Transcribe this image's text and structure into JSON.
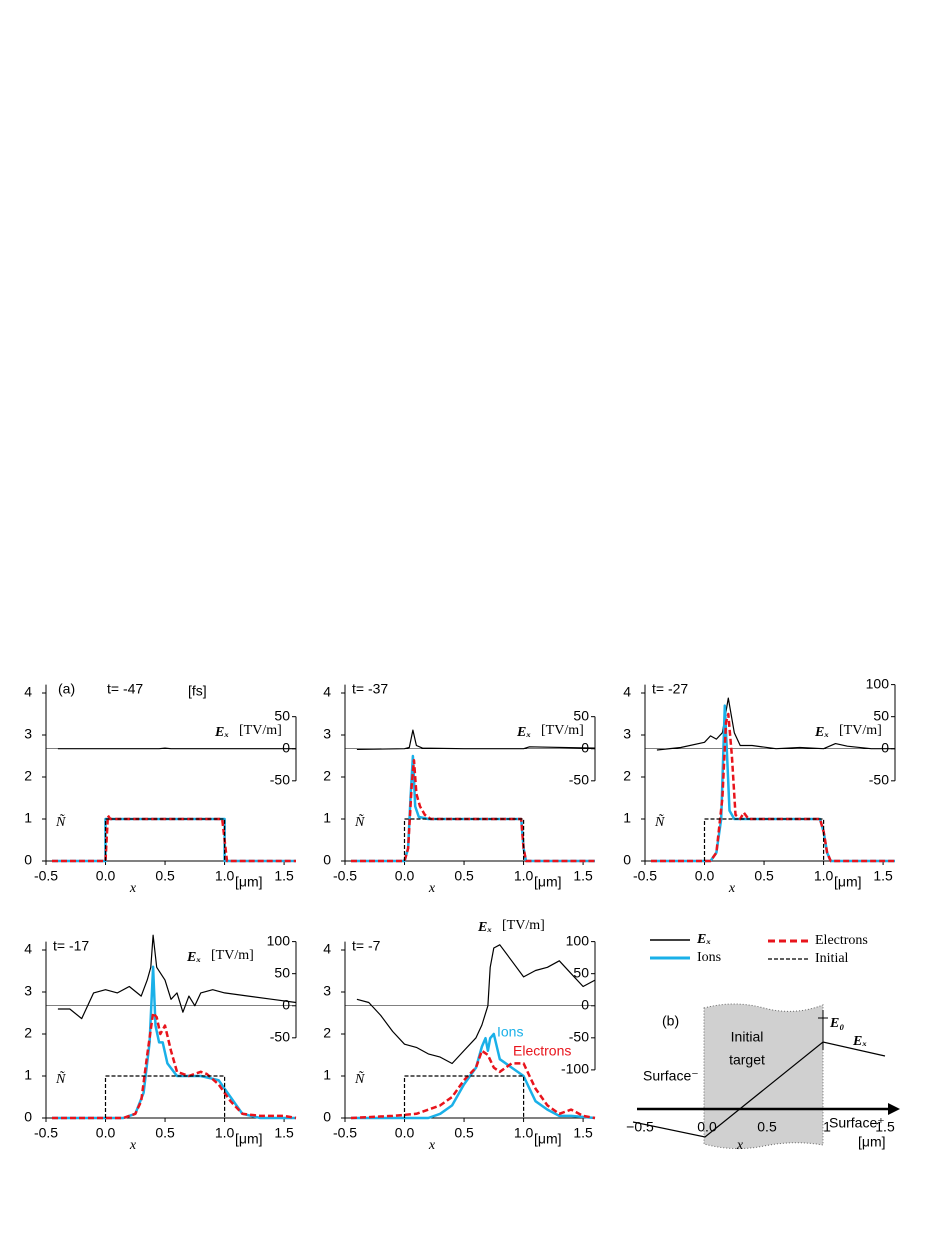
{
  "chart_data": [
    {
      "type": "line",
      "panel_label": "(a)",
      "title": "t= -47",
      "title_unit": "[fs]",
      "xlabel": "x",
      "xunit": "[μm]",
      "ylabel": "Ñ",
      "y2label": "Eₓ",
      "y2unit": "[TV/m]",
      "xlim": [
        -0.5,
        1.6
      ],
      "xticks": [
        -0.5,
        {
          "value": 0,
          "label": "0.0"
        },
        0.5,
        {
          "value": 1,
          "label": "1.0"
        },
        1.5
      ],
      "ylim": [
        0,
        4.2
      ],
      "yticks": [
        0,
        1,
        2,
        3,
        4
      ],
      "y2lim": [
        -175,
        100
      ],
      "y2ticks": [
        -50,
        0,
        50
      ],
      "series": [
        {
          "name": "Eₓ",
          "color": "#000000",
          "axis": "y2",
          "weight": "light",
          "x": [
            -0.4,
            0.45,
            0.5,
            0.55,
            1.6
          ],
          "values": [
            0,
            0,
            1,
            0,
            0
          ]
        },
        {
          "name": "Ions",
          "color": "#1ab0e8",
          "weight": "bold",
          "x": [
            -0.45,
            0,
            0,
            0.02,
            1,
            1,
            1.6
          ],
          "values": [
            0,
            0,
            1,
            1,
            1,
            0,
            0
          ]
        },
        {
          "name": "Electrons",
          "color": "#e8141c",
          "dash": true,
          "weight": "bold",
          "x": [
            -0.45,
            0,
            0.02,
            0.04,
            0.1,
            0.98,
            1,
            1.02,
            1.6
          ],
          "values": [
            0,
            0,
            1.08,
            1,
            1,
            1,
            0.5,
            0,
            0
          ]
        },
        {
          "name": "Initial",
          "color": "#000000",
          "dash": true,
          "weight": "light",
          "x": [
            0,
            0,
            1,
            1
          ],
          "values": [
            0,
            1,
            1,
            0
          ]
        }
      ]
    },
    {
      "type": "line",
      "title": "t= -37",
      "xlabel": "x",
      "xunit": "[μm]",
      "ylabel": "Ñ",
      "y2label": "Eₓ",
      "y2unit": "[TV/m]",
      "xlim": [
        -0.5,
        1.6
      ],
      "xticks": [
        -0.5,
        {
          "value": 0,
          "label": "0.0"
        },
        0.5,
        {
          "value": 1,
          "label": "1.0"
        },
        1.5
      ],
      "ylim": [
        0,
        4.2
      ],
      "yticks": [
        0,
        1,
        2,
        3,
        4
      ],
      "y2lim": [
        -175,
        100
      ],
      "y2ticks": [
        -50,
        0,
        50
      ],
      "series": [
        {
          "name": "Eₓ",
          "color": "#000000",
          "axis": "y2",
          "weight": "light",
          "x": [
            -0.4,
            0,
            0.04,
            0.07,
            0.1,
            0.15,
            0.5,
            1,
            1.05,
            1.6
          ],
          "values": [
            -1,
            0,
            2,
            29,
            5,
            1,
            0,
            0,
            3,
            1
          ]
        },
        {
          "name": "Ions",
          "color": "#1ab0e8",
          "weight": "bold",
          "x": [
            -0.45,
            0,
            0.03,
            0.05,
            0.07,
            0.09,
            0.12,
            0.2,
            0.98,
            1,
            1.02,
            1.6
          ],
          "values": [
            0,
            0,
            0.3,
            1.5,
            2.5,
            1.3,
            1.05,
            1,
            1,
            0.3,
            0,
            0
          ]
        },
        {
          "name": "Electrons",
          "color": "#e8141c",
          "dash": true,
          "weight": "bold",
          "x": [
            -0.45,
            0,
            0.03,
            0.06,
            0.08,
            0.1,
            0.13,
            0.17,
            0.22,
            0.3,
            0.98,
            1,
            1.02,
            1.6
          ],
          "values": [
            0,
            0,
            0.3,
            1.8,
            2.4,
            1.6,
            1.3,
            1.1,
            1,
            1,
            1,
            0.3,
            0,
            0
          ]
        },
        {
          "name": "Initial",
          "color": "#000000",
          "dash": true,
          "weight": "light",
          "x": [
            0,
            0,
            1,
            1
          ],
          "values": [
            0,
            1,
            1,
            0
          ]
        }
      ]
    },
    {
      "type": "line",
      "title": "t= -27",
      "xlabel": "x",
      "xunit": "[μm]",
      "ylabel": "Ñ",
      "y2label": "Eₓ",
      "y2unit": "[TV/m]",
      "xlim": [
        -0.5,
        1.6
      ],
      "xticks": [
        -0.5,
        {
          "value": 0,
          "label": "0.0"
        },
        0.5,
        {
          "value": 1,
          "label": "1.0"
        },
        1.5
      ],
      "ylim": [
        0,
        4.2
      ],
      "yticks": [
        0,
        1,
        2,
        3,
        4
      ],
      "y2lim": [
        -175,
        100
      ],
      "y2ticks": [
        -50,
        0,
        50,
        100
      ],
      "series": [
        {
          "name": "Eₓ",
          "color": "#000000",
          "axis": "y2",
          "weight": "light",
          "x": [
            -0.4,
            -0.2,
            0,
            0.05,
            0.1,
            0.15,
            0.2,
            0.25,
            0.3,
            0.4,
            0.6,
            0.8,
            1,
            1.1,
            1.2,
            1.4,
            1.6
          ],
          "values": [
            -2,
            2,
            10,
            20,
            15,
            25,
            79,
            25,
            5,
            5,
            0,
            2,
            0,
            8,
            4,
            0,
            0
          ]
        },
        {
          "name": "Ions",
          "color": "#1ab0e8",
          "weight": "bold",
          "x": [
            -0.45,
            0.05,
            0.1,
            0.14,
            0.17,
            0.19,
            0.21,
            0.25,
            0.3,
            0.97,
            1,
            1.03,
            1.06,
            1.6
          ],
          "values": [
            0,
            0,
            0.2,
            1,
            3.7,
            2.5,
            1.2,
            1,
            1,
            1,
            0.7,
            0.2,
            0,
            0
          ]
        },
        {
          "name": "Electrons",
          "color": "#e8141c",
          "dash": true,
          "weight": "bold",
          "x": [
            -0.45,
            0.05,
            0.1,
            0.15,
            0.18,
            0.2,
            0.23,
            0.26,
            0.3,
            0.33,
            0.37,
            0.5,
            0.97,
            1,
            1.03,
            1.06,
            1.6
          ],
          "values": [
            0,
            0,
            0.2,
            1.5,
            3.3,
            3.5,
            2.5,
            1.1,
            1,
            1.15,
            1,
            1,
            1,
            0.7,
            0.2,
            0,
            0
          ]
        },
        {
          "name": "Initial",
          "color": "#000000",
          "dash": true,
          "weight": "light",
          "x": [
            0,
            0,
            1,
            1
          ],
          "values": [
            0,
            1,
            1,
            0
          ]
        }
      ]
    },
    {
      "type": "line",
      "title": "t= -17",
      "xlabel": "x",
      "xunit": "[μm]",
      "ylabel": "Ñ",
      "y2label": "Eₓ",
      "y2unit": "[TV/m]",
      "xlim": [
        -0.5,
        1.6
      ],
      "xticks": [
        -0.5,
        {
          "value": 0,
          "label": "0.0"
        },
        0.5,
        {
          "value": 1,
          "label": "1.0"
        },
        1.5
      ],
      "ylim": [
        0,
        4.2
      ],
      "yticks": [
        0,
        1,
        2,
        3,
        4
      ],
      "y2lim": [
        -175,
        100
      ],
      "y2ticks": [
        -50,
        0,
        50,
        100
      ],
      "series": [
        {
          "name": "Eₓ",
          "color": "#000000",
          "axis": "y2",
          "weight": "light",
          "x": [
            -0.4,
            -0.3,
            -0.2,
            -0.1,
            0,
            0.1,
            0.2,
            0.3,
            0.35,
            0.38,
            0.4,
            0.43,
            0.5,
            0.55,
            0.6,
            0.65,
            0.7,
            0.75,
            0.8,
            0.9,
            1,
            1.2,
            1.4,
            1.6
          ],
          "values": [
            -5,
            -5,
            -20,
            20,
            25,
            20,
            30,
            15,
            40,
            60,
            110,
            60,
            40,
            10,
            20,
            -10,
            15,
            0,
            20,
            25,
            20,
            15,
            10,
            5
          ]
        },
        {
          "name": "Ions",
          "color": "#1ab0e8",
          "weight": "bold",
          "x": [
            -0.45,
            0.15,
            0.25,
            0.32,
            0.37,
            0.4,
            0.42,
            0.45,
            0.48,
            0.52,
            0.6,
            0.8,
            0.95,
            1.05,
            1.15,
            1.3,
            1.6
          ],
          "values": [
            0,
            0,
            0.1,
            0.6,
            1.8,
            3.6,
            2.2,
            1.8,
            1.8,
            1.3,
            1,
            1,
            0.9,
            0.5,
            0.1,
            0,
            0
          ]
        },
        {
          "name": "Electrons",
          "color": "#e8141c",
          "dash": true,
          "weight": "bold",
          "x": [
            -0.45,
            0.15,
            0.25,
            0.3,
            0.35,
            0.4,
            0.43,
            0.46,
            0.5,
            0.55,
            0.6,
            0.7,
            0.8,
            0.85,
            0.95,
            1.05,
            1.15,
            1.3,
            1.4,
            1.5,
            1.6
          ],
          "values": [
            0,
            0,
            0.1,
            0.4,
            1.5,
            2.5,
            2.4,
            2,
            2.2,
            1.6,
            1.1,
            1,
            1.1,
            1.05,
            0.8,
            0.4,
            0.1,
            0.05,
            0.05,
            0.05,
            0
          ]
        },
        {
          "name": "Initial",
          "color": "#000000",
          "dash": true,
          "weight": "light",
          "x": [
            0,
            0,
            1,
            1
          ],
          "values": [
            0,
            1,
            1,
            0
          ]
        }
      ]
    },
    {
      "type": "line",
      "title": "t= -7",
      "xlabel": "x",
      "xunit": "[μm]",
      "ylabel": "Ñ",
      "y2label": "Eₓ",
      "y2unit": "[TV/m]",
      "xlim": [
        -0.5,
        1.6
      ],
      "xticks": [
        -0.5,
        {
          "value": 0,
          "label": "0.0"
        },
        0.5,
        {
          "value": 1,
          "label": "1.0"
        },
        1.5
      ],
      "ylim": [
        0,
        4.2
      ],
      "yticks": [
        0,
        1,
        2,
        3,
        4
      ],
      "y2lim": [
        -175,
        100
      ],
      "y2ticks": [
        -100,
        -50,
        0,
        50,
        100
      ],
      "annotations": [
        {
          "text": "Ions",
          "color": "#1ab0e8"
        },
        {
          "text": "Electrons",
          "color": "#e8141c"
        }
      ],
      "series": [
        {
          "name": "Eₓ",
          "color": "#000000",
          "axis": "y2",
          "weight": "light",
          "x": [
            -0.4,
            -0.3,
            -0.2,
            -0.1,
            0,
            0.1,
            0.2,
            0.3,
            0.4,
            0.5,
            0.6,
            0.65,
            0.7,
            0.72,
            0.75,
            0.8,
            0.9,
            1,
            1.1,
            1.2,
            1.3,
            1.4,
            1.5,
            1.6
          ],
          "values": [
            10,
            5,
            -15,
            -40,
            -60,
            -65,
            -75,
            -80,
            -90,
            -70,
            -50,
            -30,
            0,
            60,
            90,
            95,
            70,
            45,
            55,
            60,
            70,
            50,
            30,
            40
          ]
        },
        {
          "name": "Ions",
          "color": "#1ab0e8",
          "weight": "bold",
          "x": [
            -0.45,
            0.1,
            0.2,
            0.3,
            0.4,
            0.5,
            0.6,
            0.65,
            0.68,
            0.7,
            0.72,
            0.75,
            0.8,
            0.9,
            1,
            1.05,
            1.1,
            1.2,
            1.3,
            1.4,
            1.6
          ],
          "values": [
            0,
            0,
            0,
            0.1,
            0.3,
            0.8,
            1.2,
            1.7,
            1.9,
            1.6,
            1.9,
            2,
            1.4,
            1.2,
            1,
            0.7,
            0.4,
            0.2,
            0.05,
            0.05,
            0
          ]
        },
        {
          "name": "Electrons",
          "color": "#e8141c",
          "dash": true,
          "weight": "bold",
          "x": [
            -0.45,
            -0.1,
            0.1,
            0.2,
            0.3,
            0.4,
            0.5,
            0.6,
            0.65,
            0.7,
            0.75,
            0.8,
            0.9,
            1,
            1.05,
            1.1,
            1.2,
            1.3,
            1.4,
            1.5,
            1.6
          ],
          "values": [
            0,
            0.05,
            0.1,
            0.2,
            0.3,
            0.5,
            0.9,
            1.2,
            1.6,
            1.5,
            1.2,
            1.1,
            1.3,
            1.3,
            1,
            0.7,
            0.3,
            0.1,
            0.2,
            0.05,
            0
          ]
        },
        {
          "name": "Initial",
          "color": "#000000",
          "dash": true,
          "weight": "light",
          "x": [
            0,
            0,
            1,
            1
          ],
          "values": [
            0,
            1,
            1,
            0
          ]
        }
      ]
    }
  ],
  "diagram": {
    "label": "(b)",
    "title": [
      "Initial",
      "target"
    ],
    "surface_left": "Surface⁻",
    "surface_right": "Surface⁺",
    "e0": "E₀",
    "ex": "Eₓ",
    "x": "x",
    "ticks": [
      "−0.5",
      "0.0",
      "0.5",
      "1",
      "1.5"
    ],
    "unit": "[μm]"
  }
}
